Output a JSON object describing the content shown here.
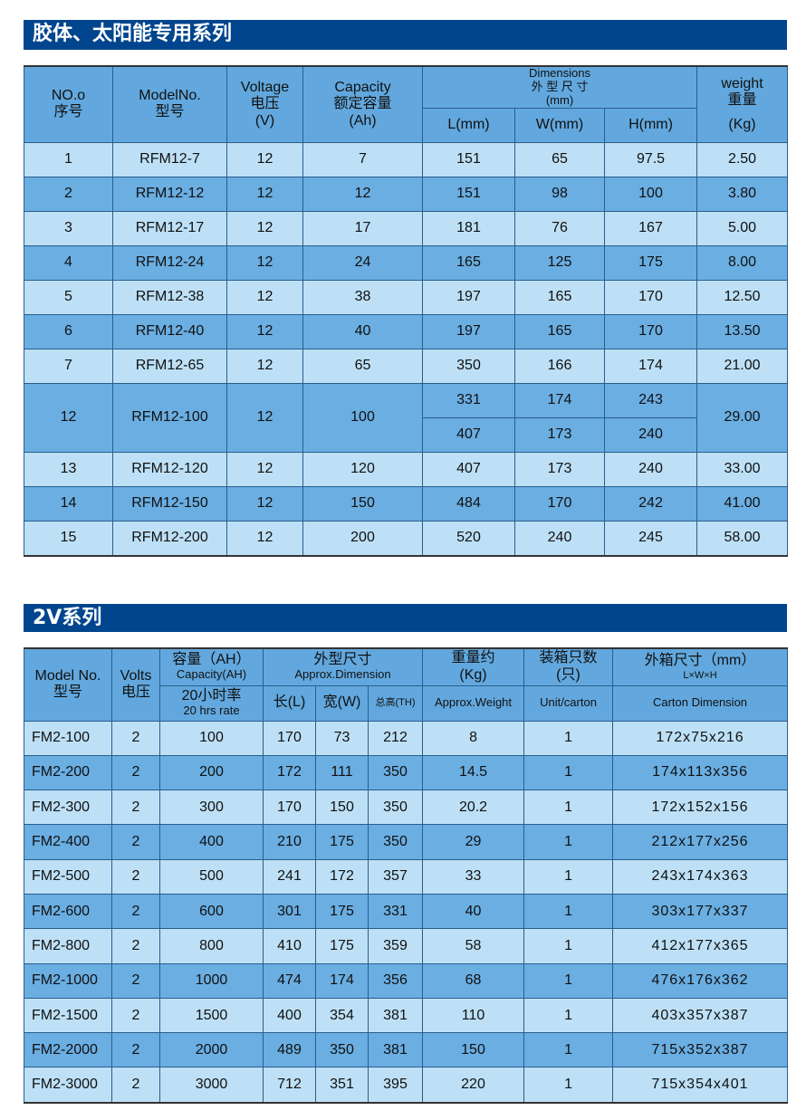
{
  "section1": {
    "title": "胶体、太阳能专用系列",
    "headers": {
      "no": [
        "NO.o",
        "序号"
      ],
      "model": [
        "ModelNo.",
        "型号"
      ],
      "voltage": [
        "Voltage",
        "电压",
        "(V)"
      ],
      "capacity": [
        "Capacity",
        "额定容量",
        "(Ah)"
      ],
      "dimensions": [
        "Dimensions",
        "外 型 尺 寸",
        "(mm)"
      ],
      "l": "L(mm)",
      "w": "W(mm)",
      "h": "H(mm)",
      "weight": [
        "weight",
        "重量",
        "(Kg)"
      ]
    },
    "rows": [
      {
        "no": "1",
        "model": "RFM12-7",
        "v": "12",
        "cap": "7",
        "dims": [
          [
            "151",
            "65",
            "97.5"
          ]
        ],
        "wt": "2.50"
      },
      {
        "no": "2",
        "model": "RFM12-12",
        "v": "12",
        "cap": "12",
        "dims": [
          [
            "151",
            "98",
            "100"
          ]
        ],
        "wt": "3.80"
      },
      {
        "no": "3",
        "model": "RFM12-17",
        "v": "12",
        "cap": "17",
        "dims": [
          [
            "181",
            "76",
            "167"
          ]
        ],
        "wt": "5.00"
      },
      {
        "no": "4",
        "model": "RFM12-24",
        "v": "12",
        "cap": "24",
        "dims": [
          [
            "165",
            "125",
            "175"
          ]
        ],
        "wt": "8.00"
      },
      {
        "no": "5",
        "model": "RFM12-38",
        "v": "12",
        "cap": "38",
        "dims": [
          [
            "197",
            "165",
            "170"
          ]
        ],
        "wt": "12.50"
      },
      {
        "no": "6",
        "model": "RFM12-40",
        "v": "12",
        "cap": "40",
        "dims": [
          [
            "197",
            "165",
            "170"
          ]
        ],
        "wt": "13.50"
      },
      {
        "no": "7",
        "model": "RFM12-65",
        "v": "12",
        "cap": "65",
        "dims": [
          [
            "350",
            "166",
            "174"
          ]
        ],
        "wt": "21.00"
      },
      {
        "no": "12",
        "model": "RFM12-100",
        "v": "12",
        "cap": "100",
        "dims": [
          [
            "331",
            "174",
            "243"
          ],
          [
            "407",
            "173",
            "240"
          ]
        ],
        "wt": "29.00"
      },
      {
        "no": "13",
        "model": "RFM12-120",
        "v": "12",
        "cap": "120",
        "dims": [
          [
            "407",
            "173",
            "240"
          ]
        ],
        "wt": "33.00"
      },
      {
        "no": "14",
        "model": "RFM12-150",
        "v": "12",
        "cap": "150",
        "dims": [
          [
            "484",
            "170",
            "242"
          ]
        ],
        "wt": "41.00"
      },
      {
        "no": "15",
        "model": "RFM12-200",
        "v": "12",
        "cap": "200",
        "dims": [
          [
            "520",
            "240",
            "245"
          ]
        ],
        "wt": "58.00"
      }
    ]
  },
  "section2": {
    "title": "2V系列",
    "headers": {
      "model": [
        "Model No.",
        "型号"
      ],
      "volts": [
        "Volts",
        "电压"
      ],
      "capacity": [
        "容量（AH）",
        "Capacity(AH)"
      ],
      "rate": [
        "20小时率",
        "20 hrs rate"
      ],
      "dimension": [
        "外型尺寸",
        "Approx.Dimension"
      ],
      "l": "长(L)",
      "w": "宽(W)",
      "th": "总高(TH)",
      "weight": [
        "重量约",
        "(Kg)"
      ],
      "weight_en": "Approx.Weight",
      "unit": [
        "装箱只数",
        "(只)"
      ],
      "unit_en": "Unit/carton",
      "carton": [
        "外箱尺寸（mm）",
        "L×W×H"
      ],
      "carton_en": "Carton Dimension"
    },
    "rows": [
      [
        "FM2-100",
        "2",
        "100",
        "170",
        "73",
        "212",
        "8",
        "1",
        "172x75x216"
      ],
      [
        "FM2-200",
        "2",
        "200",
        "172",
        "111",
        "350",
        "14.5",
        "1",
        "174x113x356"
      ],
      [
        "FM2-300",
        "2",
        "300",
        "170",
        "150",
        "350",
        "20.2",
        "1",
        "172x152x156"
      ],
      [
        "FM2-400",
        "2",
        "400",
        "210",
        "175",
        "350",
        "29",
        "1",
        "212x177x256"
      ],
      [
        "FM2-500",
        "2",
        "500",
        "241",
        "172",
        "357",
        "33",
        "1",
        "243x174x363"
      ],
      [
        "FM2-600",
        "2",
        "600",
        "301",
        "175",
        "331",
        "40",
        "1",
        "303x177x337"
      ],
      [
        "FM2-800",
        "2",
        "800",
        "410",
        "175",
        "359",
        "58",
        "1",
        "412x177x365"
      ],
      [
        "FM2-1000",
        "2",
        "1000",
        "474",
        "174",
        "356",
        "68",
        "1",
        "476x176x362"
      ],
      [
        "FM2-1500",
        "2",
        "1500",
        "400",
        "354",
        "381",
        "110",
        "1",
        "403x357x387"
      ],
      [
        "FM2-2000",
        "2",
        "2000",
        "489",
        "350",
        "381",
        "150",
        "1",
        "715x352x387"
      ],
      [
        "FM2-3000",
        "2",
        "3000",
        "712",
        "351",
        "395",
        "220",
        "1",
        "715x354x401"
      ]
    ]
  },
  "colors": {
    "title_bar": "#00458e",
    "header": "#62a8de",
    "row_light": "#bde0f6",
    "row_dark": "#6aaee2"
  }
}
